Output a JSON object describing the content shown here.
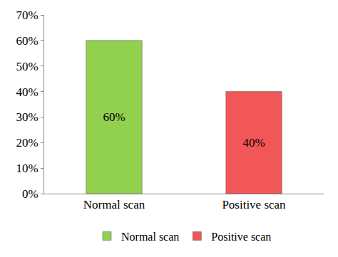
{
  "chart_data": {
    "type": "bar",
    "categories": [
      "Normal scan",
      "Positive scan"
    ],
    "values": [
      60,
      40
    ],
    "value_labels": [
      "60%",
      "40%"
    ],
    "data_labels": true,
    "colors": [
      "#92d050",
      "#f25757"
    ],
    "ylim": [
      0,
      70
    ],
    "yticks": [
      {
        "value": 0,
        "label": "0%"
      },
      {
        "value": 10,
        "label": "10%"
      },
      {
        "value": 20,
        "label": "20%"
      },
      {
        "value": 30,
        "label": "30%"
      },
      {
        "value": 40,
        "label": "40%"
      },
      {
        "value": 50,
        "label": "50%"
      },
      {
        "value": 60,
        "label": "60%"
      },
      {
        "value": 70,
        "label": "70%"
      }
    ],
    "grid": false,
    "legend": "bottom"
  }
}
